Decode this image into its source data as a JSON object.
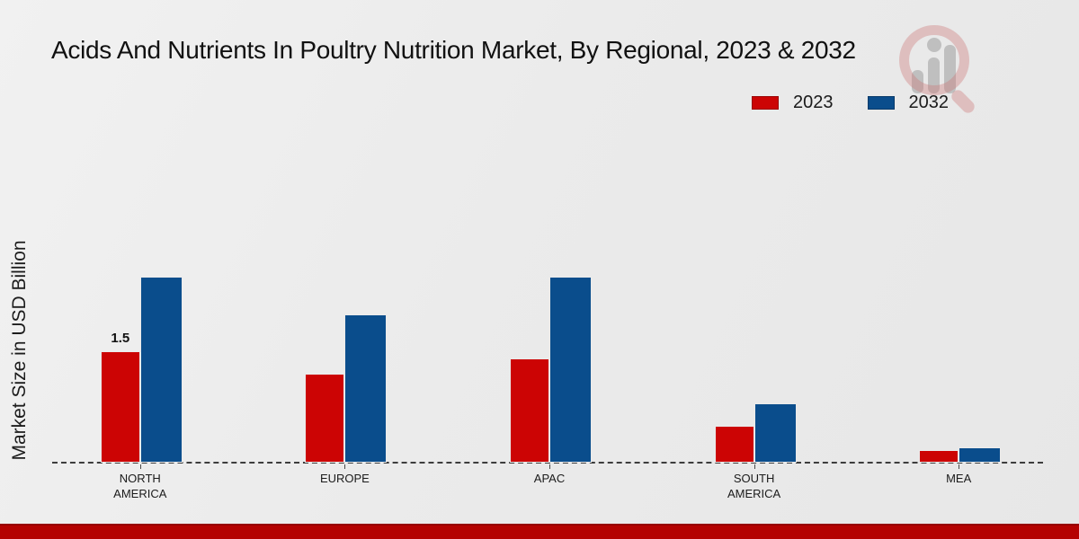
{
  "title": "Acids And Nutrients In Poultry Nutrition Market, By Regional, 2023 & 2032",
  "watermark": {
    "name": "market-research-magnifier-logo"
  },
  "colors": {
    "series_2023": "#cc0404",
    "series_2032": "#0a4d8c",
    "bottom_band": "#b40201",
    "background": "#ebebeb",
    "baseline": "#3d3d3d"
  },
  "chart_data": {
    "type": "bar",
    "title": "Acids And Nutrients In Poultry Nutrition Market, By Regional, 2023 & 2032",
    "xlabel": "",
    "ylabel": "Market Size in USD Billion",
    "ylim": [
      0,
      3
    ],
    "grid": false,
    "legend_position": "top-right",
    "baseline_style": "dashed",
    "categories": [
      "NORTH AMERICA",
      "EUROPE",
      "APAC",
      "SOUTH AMERICA",
      "MEA"
    ],
    "series": [
      {
        "name": "2023",
        "color": "#cc0404",
        "values": [
          1.5,
          1.2,
          1.4,
          0.5,
          0.17
        ]
      },
      {
        "name": "2032",
        "color": "#0a4d8c",
        "values": [
          2.5,
          2.0,
          2.5,
          0.8,
          0.2
        ]
      }
    ],
    "annotations": [
      {
        "category_index": 0,
        "series_index": 0,
        "text": "1.5"
      }
    ]
  }
}
